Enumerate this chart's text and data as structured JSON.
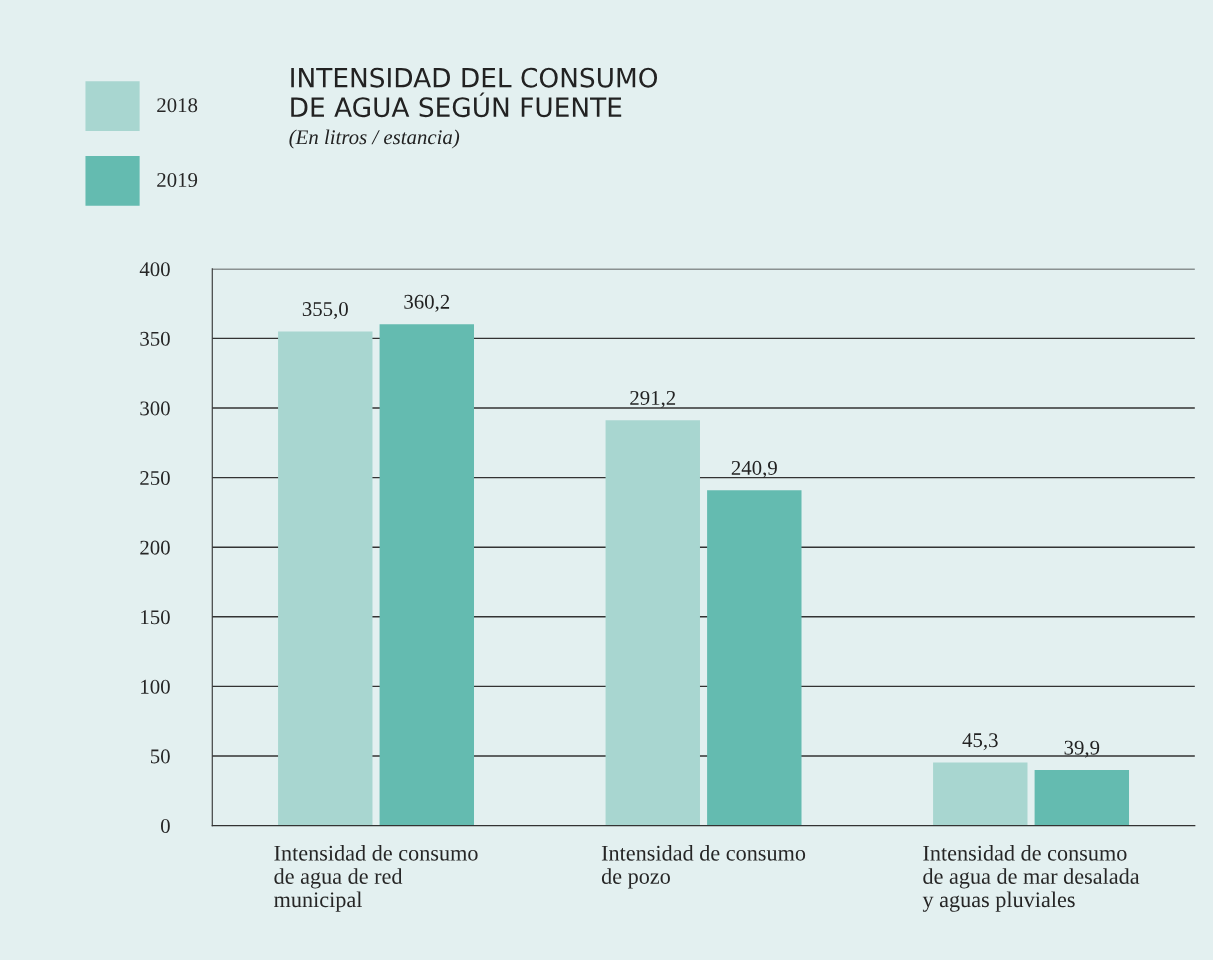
{
  "chart_data": {
    "type": "bar",
    "title": "INTENSIDAD DEL CONSUMO\nDE AGUA SEGÚN FUENTE",
    "subtitle": "(En litros / estancia)",
    "categories": [
      "Intensidad de consumo\nde agua de red\nmunicipal",
      "Intensidad de consumo\nde pozo",
      "Intensidad de consumo\nde agua de mar desalada\ny aguas pluviales"
    ],
    "series": [
      {
        "name": "2018",
        "color": "#a8d6d0",
        "values": [
          355.0,
          291.2,
          45.3
        ],
        "value_labels": [
          "355,0",
          "291,2",
          "45,3"
        ]
      },
      {
        "name": "2019",
        "color": "#64bbb0",
        "values": [
          360.2,
          240.9,
          39.9
        ],
        "value_labels": [
          "360,2",
          "240,9",
          "39,9"
        ]
      }
    ],
    "ylim": [
      0,
      400
    ],
    "yticks": [
      0,
      50,
      100,
      150,
      200,
      250,
      300,
      350,
      400
    ],
    "grid": "y",
    "legend": "top left"
  }
}
